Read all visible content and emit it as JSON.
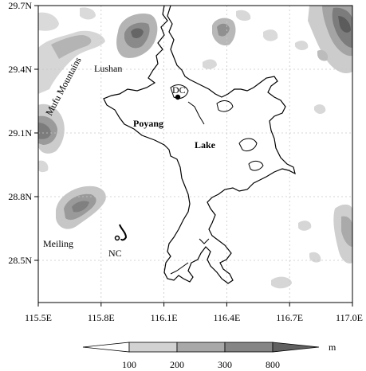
{
  "map": {
    "x_ticks": [
      "115.5E",
      "115.8E",
      "116.1E",
      "116.4E",
      "116.7E",
      "117.0E"
    ],
    "y_ticks": [
      "29.7N",
      "29.4N",
      "29.1N",
      "28.8N",
      "28.5N"
    ],
    "labels": {
      "lushan": "Lushan",
      "mufu": "Mufu Mountains",
      "dc": "DC",
      "poyang": "Poyang",
      "lake": "Lake",
      "meiling": "Meiling",
      "nc": "NC"
    }
  },
  "legend": {
    "unit": "m",
    "levels": [
      "100",
      "200",
      "300",
      "800"
    ],
    "colors": [
      "#ffffff",
      "#d2d2d2",
      "#a8a8a8",
      "#858585",
      "#606060"
    ]
  }
}
